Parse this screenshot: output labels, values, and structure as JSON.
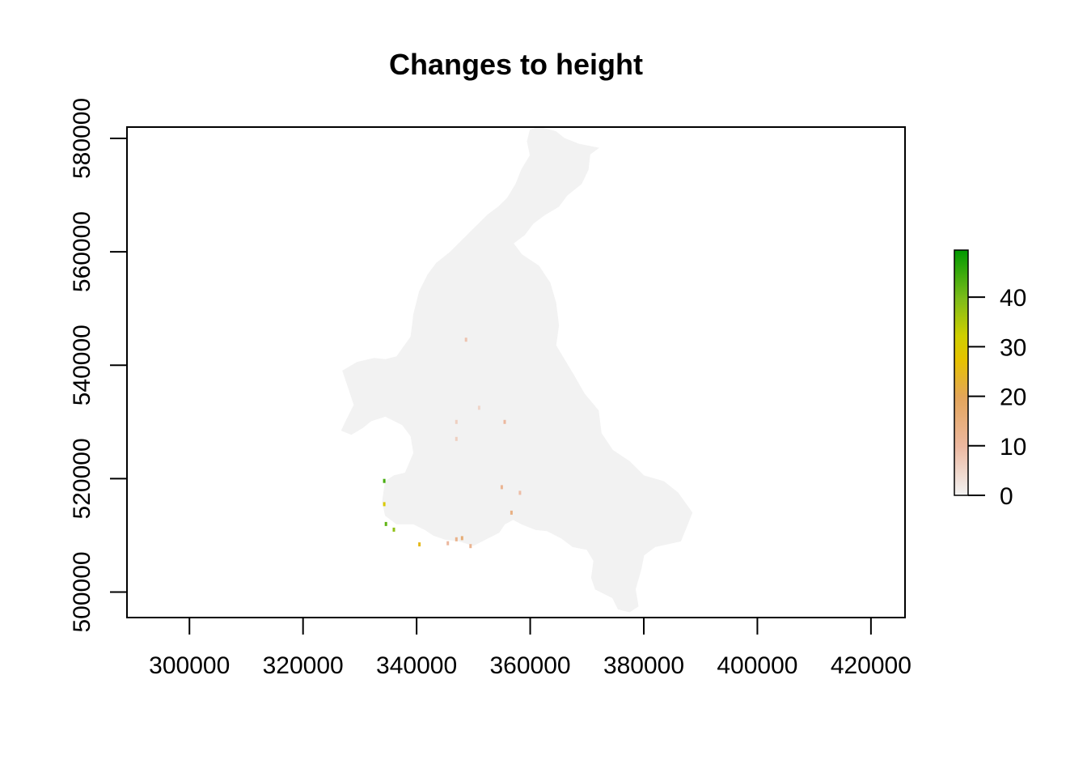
{
  "chart_data": {
    "type": "heatmap",
    "title": "Changes to height",
    "xlabel": "",
    "ylabel": "",
    "xlim": [
      289000,
      426000
    ],
    "ylim": [
      495500,
      582000
    ],
    "x_ticks": [
      300000,
      320000,
      340000,
      360000,
      380000,
      400000,
      420000
    ],
    "y_ticks": [
      500000,
      520000,
      540000,
      560000,
      580000
    ],
    "x_tick_labels": [
      "300000",
      "320000",
      "340000",
      "360000",
      "380000",
      "400000",
      "420000"
    ],
    "y_tick_labels": [
      "500000",
      "520000",
      "540000",
      "560000",
      "580000"
    ],
    "grid": false,
    "raster_value_range": [
      0,
      49.5
    ],
    "background_cell_value": 0,
    "colors": {
      "region_fill": "#f2f2f2",
      "scale_low": "#f2f2f2",
      "scale_mid_low": "#e8a07a",
      "scale_mid": "#e6c200",
      "scale_high": "#009900"
    },
    "legend": {
      "position": "right",
      "min": 0,
      "max": 49.5,
      "ticks": [
        0,
        10,
        20,
        30,
        40
      ],
      "tick_labels": [
        "0",
        "10",
        "20",
        "30",
        "40"
      ]
    },
    "catchment_outline": [
      [
        361500,
        582000
      ],
      [
        364500,
        581200
      ],
      [
        366000,
        580000
      ],
      [
        368500,
        579000
      ],
      [
        372000,
        578300
      ],
      [
        370500,
        577200
      ],
      [
        370200,
        574500
      ],
      [
        369000,
        572000
      ],
      [
        366500,
        570000
      ],
      [
        365000,
        568000
      ],
      [
        362500,
        566500
      ],
      [
        360500,
        565000
      ],
      [
        359000,
        563000
      ],
      [
        357000,
        561500
      ],
      [
        358500,
        559500
      ],
      [
        361500,
        557500
      ],
      [
        363500,
        554500
      ],
      [
        364500,
        551000
      ],
      [
        365000,
        547000
      ],
      [
        364500,
        543500
      ],
      [
        367500,
        538500
      ],
      [
        369500,
        535000
      ],
      [
        372000,
        532000
      ],
      [
        372500,
        528000
      ],
      [
        374500,
        525000
      ],
      [
        377500,
        523000
      ],
      [
        380000,
        520500
      ],
      [
        383500,
        519500
      ],
      [
        386000,
        517500
      ],
      [
        388500,
        514000
      ],
      [
        387500,
        511500
      ],
      [
        386500,
        509000
      ],
      [
        382000,
        508000
      ],
      [
        380000,
        506500
      ],
      [
        379500,
        504000
      ],
      [
        378500,
        500500
      ],
      [
        379000,
        497500
      ],
      [
        377500,
        496500
      ],
      [
        375500,
        497000
      ],
      [
        374500,
        499000
      ],
      [
        371500,
        500500
      ],
      [
        370800,
        502500
      ],
      [
        371200,
        505500
      ],
      [
        370000,
        507500
      ],
      [
        367500,
        508000
      ],
      [
        365500,
        509500
      ],
      [
        363000,
        510800
      ],
      [
        361000,
        511000
      ],
      [
        358500,
        512000
      ],
      [
        357000,
        512800
      ],
      [
        355500,
        512000
      ],
      [
        354500,
        510500
      ],
      [
        352500,
        509500
      ],
      [
        350000,
        508200
      ],
      [
        347500,
        509000
      ],
      [
        345000,
        509300
      ],
      [
        343000,
        510000
      ],
      [
        341500,
        511000
      ],
      [
        339500,
        512000
      ],
      [
        336500,
        512000
      ],
      [
        334500,
        513500
      ],
      [
        334000,
        516000
      ],
      [
        334500,
        519500
      ],
      [
        336000,
        520500
      ],
      [
        338000,
        521000
      ],
      [
        339500,
        524500
      ],
      [
        339000,
        527500
      ],
      [
        337500,
        529500
      ],
      [
        334500,
        531000
      ],
      [
        332000,
        530200
      ],
      [
        330500,
        529000
      ],
      [
        328500,
        527800
      ],
      [
        326800,
        528500
      ],
      [
        327500,
        530000
      ],
      [
        329000,
        533000
      ],
      [
        328000,
        536000
      ],
      [
        327000,
        539000
      ],
      [
        329500,
        540500
      ],
      [
        332500,
        541200
      ],
      [
        334500,
        541000
      ],
      [
        336500,
        541500
      ],
      [
        339000,
        545000
      ],
      [
        339500,
        549000
      ],
      [
        340500,
        553000
      ],
      [
        342000,
        556000
      ],
      [
        343500,
        558000
      ],
      [
        346000,
        560000
      ],
      [
        348500,
        562500
      ],
      [
        350000,
        564000
      ],
      [
        352500,
        566500
      ],
      [
        354500,
        568000
      ],
      [
        356000,
        569500
      ],
      [
        357500,
        572000
      ],
      [
        358500,
        574500
      ],
      [
        360000,
        577000
      ],
      [
        359500,
        579500
      ],
      [
        360000,
        581500
      ]
    ],
    "change_cells": [
      {
        "x": 348700,
        "y": 544500,
        "value": 8
      },
      {
        "x": 355500,
        "y": 530000,
        "value": 10
      },
      {
        "x": 347000,
        "y": 530000,
        "value": 6
      },
      {
        "x": 355000,
        "y": 518500,
        "value": 12
      },
      {
        "x": 358200,
        "y": 517500,
        "value": 9
      },
      {
        "x": 356700,
        "y": 514000,
        "value": 14
      },
      {
        "x": 348000,
        "y": 509500,
        "value": 16
      },
      {
        "x": 347000,
        "y": 509300,
        "value": 13
      },
      {
        "x": 349500,
        "y": 508100,
        "value": 12
      },
      {
        "x": 345500,
        "y": 508600,
        "value": 10
      },
      {
        "x": 340500,
        "y": 508400,
        "value": 25
      },
      {
        "x": 336000,
        "y": 511000,
        "value": 38
      },
      {
        "x": 334600,
        "y": 512000,
        "value": 42
      },
      {
        "x": 334300,
        "y": 519600,
        "value": 44
      },
      {
        "x": 334300,
        "y": 515500,
        "value": 30
      },
      {
        "x": 351000,
        "y": 532500,
        "value": 5
      },
      {
        "x": 347000,
        "y": 527000,
        "value": 6
      }
    ]
  }
}
